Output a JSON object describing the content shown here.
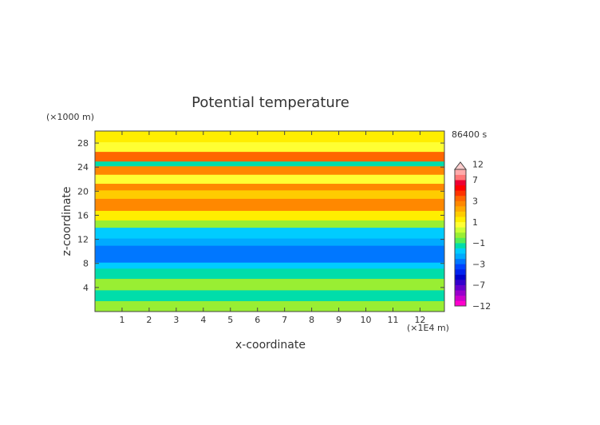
{
  "chart_data": {
    "type": "heatmap",
    "title": "Potential temperature",
    "xlabel": "x-coordinate",
    "ylabel": "z-coordinate",
    "x_unit": "(×1E4 m)",
    "y_unit": "(×1000 m)",
    "time_label": "86400 s",
    "xlim": [
      0,
      12.9
    ],
    "ylim": [
      0,
      30
    ],
    "x_ticks": [
      "1",
      "2",
      "3",
      "4",
      "5",
      "6",
      "7",
      "8",
      "9",
      "10",
      "11",
      "12"
    ],
    "y_ticks": [
      "4",
      "8",
      "12",
      "16",
      "20",
      "24",
      "28"
    ],
    "colorbar": {
      "tick_labels": [
        "12",
        "7",
        "3",
        "1",
        "−1",
        "−3",
        "−7",
        "−12"
      ],
      "tick_values": [
        12,
        7,
        3,
        1,
        -1,
        -3,
        -7,
        -12
      ],
      "levels": [
        -12,
        -10,
        -9,
        -8,
        -7,
        -6,
        -5,
        -4,
        -3,
        -2.5,
        -2,
        -1.5,
        -1,
        -0.5,
        0,
        0.5,
        1,
        1.5,
        2,
        2.5,
        3,
        4,
        5,
        6,
        7,
        8,
        10,
        12
      ],
      "colors": [
        "#ff00cc",
        "#cc00cc",
        "#9900cc",
        "#6600cc",
        "#3300cc",
        "#0000cc",
        "#0022ee",
        "#0044ff",
        "#0077ff",
        "#00aaff",
        "#00ccff",
        "#00ddaa",
        "#55ee55",
        "#99ee33",
        "#ccff33",
        "#ffff33",
        "#ffee00",
        "#ffcc00",
        "#ffaa00",
        "#ff8800",
        "#ff6600",
        "#ff3300",
        "#ff0000",
        "#ee0033",
        "#ff7777",
        "#ffaaaa",
        "#ffcccc"
      ],
      "extend": "max"
    },
    "bands": [
      {
        "z": [
          0.0,
          1.8
        ],
        "value": -0.5
      },
      {
        "z": [
          1.8,
          3.6
        ],
        "value": -1.2
      },
      {
        "z": [
          3.6,
          5.5
        ],
        "value": -0.4
      },
      {
        "z": [
          5.5,
          7.2
        ],
        "value": -1.1
      },
      {
        "z": [
          7.2,
          8.2
        ],
        "value": -2.0
      },
      {
        "z": [
          8.2,
          11.0
        ],
        "value": -3.0
      },
      {
        "z": [
          11.0,
          12.2
        ],
        "value": -2.2
      },
      {
        "z": [
          12.2,
          14.0
        ],
        "value": -1.6
      },
      {
        "z": [
          14.0,
          15.2
        ],
        "value": -0.5
      },
      {
        "z": [
          15.2,
          16.8
        ],
        "value": 1.0
      },
      {
        "z": [
          16.8,
          18.8
        ],
        "value": 2.5
      },
      {
        "z": [
          18.8,
          20.2
        ],
        "value": 1.5
      },
      {
        "z": [
          20.2,
          21.3
        ],
        "value": 2.8
      },
      {
        "z": [
          21.3,
          22.8
        ],
        "value": 0.5
      },
      {
        "z": [
          22.8,
          24.2
        ],
        "value": 2.8
      },
      {
        "z": [
          24.2,
          25.0
        ],
        "value": -1.5
      },
      {
        "z": [
          25.0,
          26.6
        ],
        "value": 3.5
      },
      {
        "z": [
          26.6,
          28.2
        ],
        "value": 0.5
      },
      {
        "z": [
          28.2,
          30.0
        ],
        "value": 1.2
      }
    ]
  }
}
